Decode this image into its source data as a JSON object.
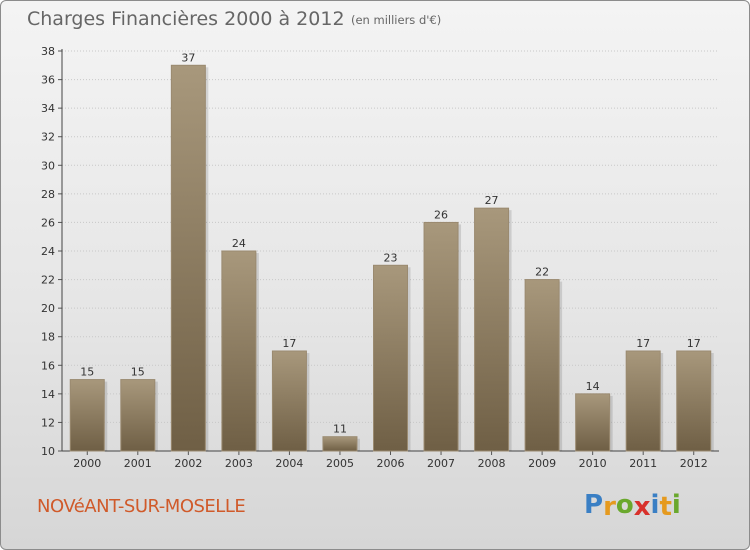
{
  "header": {
    "title": "Charges Financières 2000 à 2012",
    "subtitle": "(en milliers d'€)"
  },
  "footer": {
    "commune": "NOVéANT-SUR-MOSELLE",
    "logo_letters": [
      {
        "char": "P",
        "color": "#3a7fc4"
      },
      {
        "char": "r",
        "color": "#e59a1f"
      },
      {
        "char": "o",
        "color": "#6aa82d"
      },
      {
        "char": "x",
        "color": "#d8312b"
      },
      {
        "char": "i",
        "color": "#3a7fc4"
      },
      {
        "char": "t",
        "color": "#e59a1f"
      },
      {
        "char": "i",
        "color": "#6aa82d"
      }
    ]
  },
  "colors": {
    "bar_top": "#a8987c",
    "bar_bottom": "#6f5f45",
    "commune": "#d05a2a"
  },
  "chart_data": {
    "type": "bar",
    "categories": [
      "2000",
      "2001",
      "2002",
      "2003",
      "2004",
      "2005",
      "2006",
      "2007",
      "2008",
      "2009",
      "2010",
      "2011",
      "2012"
    ],
    "values": [
      15,
      15,
      37,
      24,
      17,
      11,
      23,
      26,
      27,
      22,
      14,
      17,
      17
    ],
    "data_labels": [
      "15",
      "15",
      "37",
      "24",
      "17",
      "11",
      "23",
      "26",
      "27",
      "22",
      "14",
      "17",
      "17"
    ],
    "yticks": [
      10,
      12,
      14,
      16,
      18,
      20,
      22,
      24,
      26,
      28,
      30,
      32,
      34,
      36,
      38
    ],
    "ylim": [
      10,
      38
    ],
    "grid": true
  }
}
